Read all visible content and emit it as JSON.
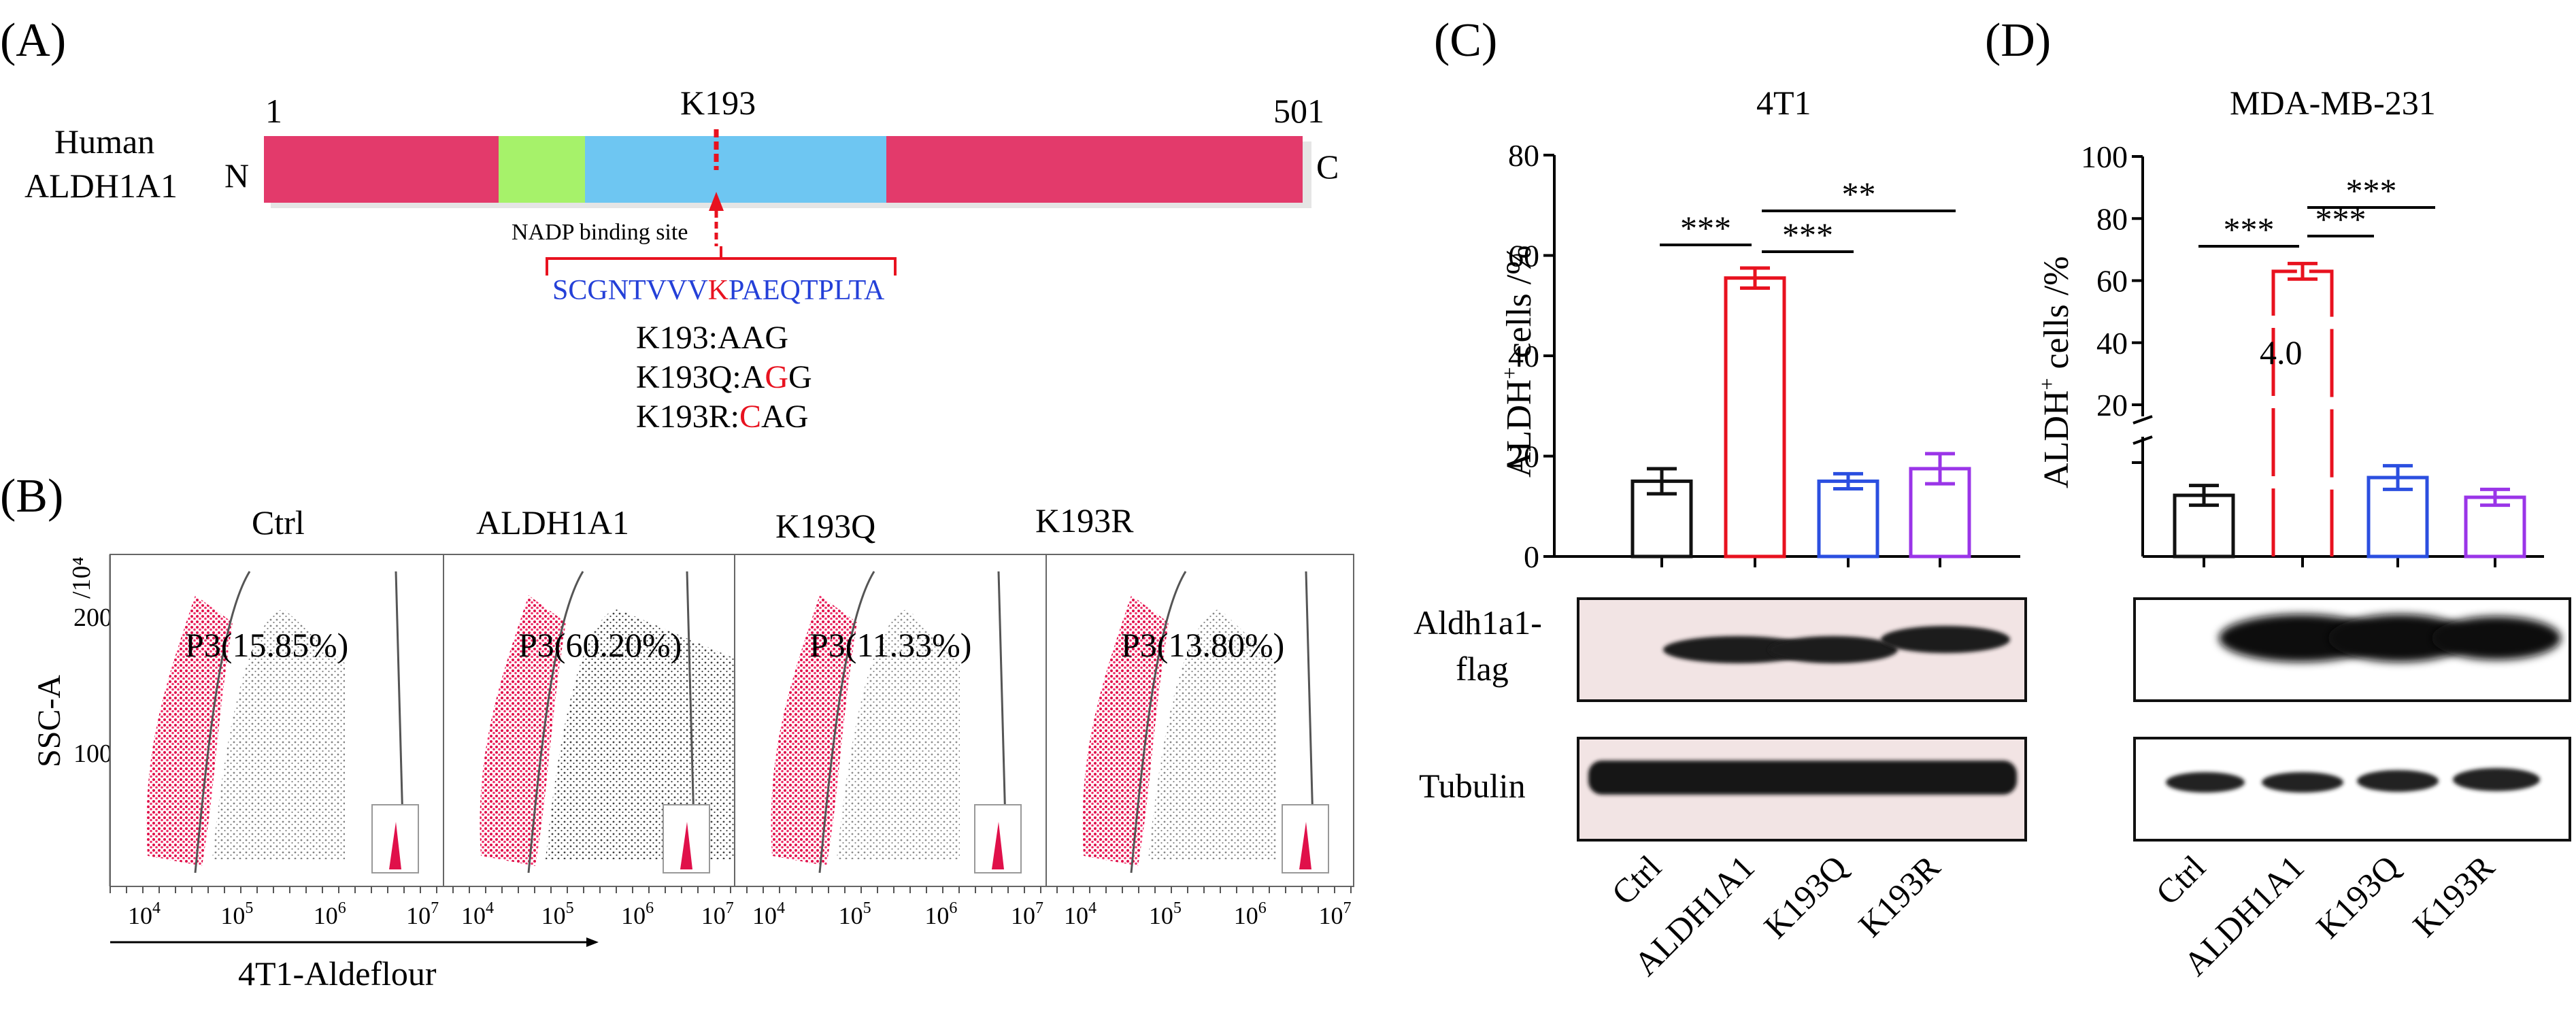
{
  "panels": {
    "A": "(A)",
    "B": "(B)",
    "C": "(C)",
    "D": "(D)"
  },
  "panel_a": {
    "species": "Human",
    "protein": "ALDH1A1",
    "n_term": "N",
    "c_term": "C",
    "start": "1",
    "end": "501",
    "site": "K193",
    "binding_label": "NADP binding site",
    "sequence_pre": "SCGNTVVV",
    "sequence_k": "K",
    "sequence_post": "PAEQTPLTA",
    "codons": [
      {
        "prefix": "K193:AAG",
        "mut": "",
        "suffix": ""
      },
      {
        "prefix": "K193Q:A",
        "mut": "G",
        "suffix": "G"
      },
      {
        "prefix": "K193R:",
        "mut": "C",
        "suffix": "AG"
      }
    ],
    "colors": {
      "domain_main": "#e33a6b",
      "domain_green": "#a6f26a",
      "domain_blue": "#6ec6f2",
      "mutation": "#e8121f",
      "sequence": "#2440d8"
    }
  },
  "panel_b": {
    "xlabel": "4T1-Aldeflour",
    "ylabel": "SSC-A",
    "y_unit": "/10⁴",
    "yticks": [
      "200",
      "100"
    ],
    "xticks_base": "10",
    "xticks_exp": [
      "4",
      "5",
      "6",
      "7"
    ],
    "plots": [
      {
        "title": "Ctrl",
        "gate": "P3(15.85%)",
        "gate_value": 15.85
      },
      {
        "title": "ALDH1A1",
        "gate": "P3(60.20%)",
        "gate_value": 60.2
      },
      {
        "title": "K193Q",
        "gate": "P3(11.33%)",
        "gate_value": 11.33
      },
      {
        "title": "K193R",
        "gate": "P3(13.80%)",
        "gate_value": 13.8
      }
    ]
  },
  "panel_c": {
    "title": "4T1",
    "ylabel_pre": "ALDH",
    "ylabel_sup": "+",
    "ylabel_post": " cells /%",
    "blot_labels": [
      "Aldh1a1-",
      "flag",
      "Tubulin"
    ]
  },
  "panel_d": {
    "title": "MDA-MB-231",
    "ylabel_pre": "ALDH",
    "ylabel_sup": "+",
    "ylabel_post": " cells /%",
    "fold_label": "4.0"
  },
  "chart_data": [
    {
      "type": "bar",
      "title": "4T1",
      "ylabel": "ALDH+ cells /%",
      "categories": [
        "Ctrl",
        "ALDH1A1",
        "K193Q",
        "K193R"
      ],
      "values": [
        15,
        55.5,
        15,
        17.5
      ],
      "errors": [
        2.5,
        2.0,
        1.5,
        3.0
      ],
      "colors": [
        "#111111",
        "#e8121f",
        "#2b4fe0",
        "#9a35e8"
      ],
      "ylim": [
        0,
        80
      ],
      "yticks": [
        0,
        20,
        40,
        60,
        80
      ],
      "significance": [
        "***",
        "***",
        "**"
      ]
    },
    {
      "type": "bar",
      "title": "MDA-MB-231",
      "ylabel": "ALDH+ cells /%",
      "categories": [
        "Ctrl",
        "ALDH1A1",
        "K193Q",
        "K193R"
      ],
      "values": [
        15.5,
        63,
        20,
        15
      ],
      "errors": [
        2.5,
        2.5,
        3.0,
        2.0
      ],
      "colors": [
        "#111111",
        "#e8121f",
        "#2b4fe0",
        "#9a35e8"
      ],
      "ylim": [
        0,
        100
      ],
      "yticks": [
        20,
        40,
        60,
        80,
        100
      ],
      "axis_break": true,
      "significance": [
        "***",
        "***",
        "***"
      ]
    }
  ]
}
